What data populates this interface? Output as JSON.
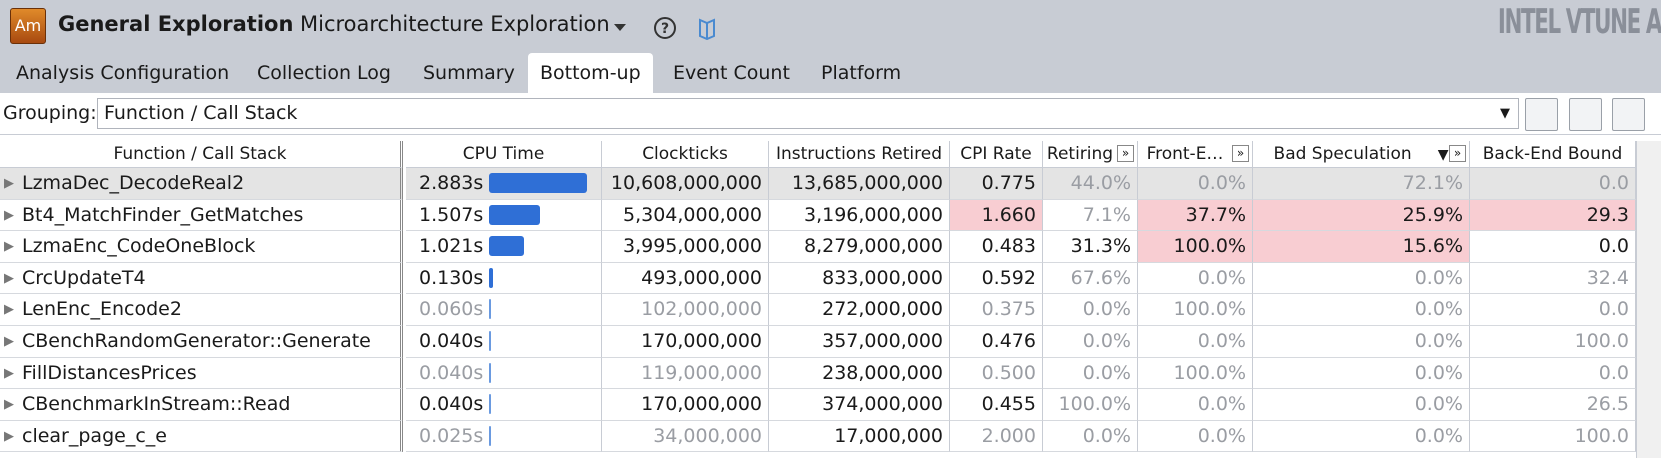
{
  "header": {
    "logo": "Am",
    "title": "General Exploration",
    "analysis": "Microarchitecture Exploration",
    "brand": "INTEL VTUNE A"
  },
  "tabs": {
    "items": [
      "Analysis Configuration",
      "Collection Log",
      "Summary",
      "Bottom-up",
      "Event Count",
      "Platform"
    ],
    "active": 3
  },
  "grouping": {
    "label": "Grouping:",
    "value": "Function / Call Stack"
  },
  "table": {
    "columns": [
      "Function / Call Stack",
      "CPU Time",
      "Clockticks",
      "Instructions Retired",
      "CPI Rate",
      "Retiring",
      "Front-E…",
      "Bad Speculation",
      "Back-End Bound"
    ],
    "sorted_column": 7,
    "expand_columns": [
      5,
      6,
      7
    ],
    "bar_column": 1,
    "selected_row": 0,
    "rows": [
      {
        "cells": [
          "LzmaDec_DecodeReal2",
          "2.883s",
          "10,608,000,000",
          "13,685,000,000",
          "0.775",
          "44.0%",
          "0.0%",
          "72.1%",
          "0.0"
        ],
        "muted": [
          5,
          6,
          7,
          8
        ],
        "highlight": []
      },
      {
        "cells": [
          "Bt4_MatchFinder_GetMatches",
          "1.507s",
          "5,304,000,000",
          "3,196,000,000",
          "1.660",
          "7.1%",
          "37.7%",
          "25.9%",
          "29.3"
        ],
        "muted": [
          5
        ],
        "highlight": [
          4,
          6,
          7,
          8
        ]
      },
      {
        "cells": [
          "LzmaEnc_CodeOneBlock",
          "1.021s",
          "3,995,000,000",
          "8,279,000,000",
          "0.483",
          "31.3%",
          "100.0%",
          "15.6%",
          "0.0"
        ],
        "muted": [],
        "highlight": [
          6,
          7
        ]
      },
      {
        "cells": [
          "CrcUpdateT4",
          "0.130s",
          "493,000,000",
          "833,000,000",
          "0.592",
          "67.6%",
          "0.0%",
          "0.0%",
          "32.4"
        ],
        "muted": [
          5,
          6,
          7,
          8
        ],
        "highlight": []
      },
      {
        "cells": [
          "LenEnc_Encode2",
          "0.060s",
          "102,000,000",
          "272,000,000",
          "0.375",
          "0.0%",
          "100.0%",
          "0.0%",
          "0.0"
        ],
        "muted": [
          1,
          2,
          4,
          5,
          6,
          7,
          8
        ],
        "highlight": []
      },
      {
        "cells": [
          "CBenchRandomGenerator::Generate",
          "0.040s",
          "170,000,000",
          "357,000,000",
          "0.476",
          "0.0%",
          "0.0%",
          "0.0%",
          "100.0"
        ],
        "muted": [
          5,
          6,
          7,
          8
        ],
        "highlight": []
      },
      {
        "cells": [
          "FillDistancesPrices",
          "0.040s",
          "119,000,000",
          "238,000,000",
          "0.500",
          "0.0%",
          "100.0%",
          "0.0%",
          "0.0"
        ],
        "muted": [
          1,
          2,
          4,
          5,
          6,
          7,
          8
        ],
        "highlight": []
      },
      {
        "cells": [
          "CBenchmarkInStream::Read",
          "0.040s",
          "170,000,000",
          "374,000,000",
          "0.455",
          "100.0%",
          "0.0%",
          "0.0%",
          "26.5"
        ],
        "muted": [
          5,
          6,
          7,
          8
        ],
        "highlight": []
      },
      {
        "cells": [
          "clear_page_c_e",
          "0.025s",
          "34,000,000",
          "17,000,000",
          "2.000",
          "0.0%",
          "0.0%",
          "0.0%",
          "100.0"
        ],
        "muted": [
          1,
          2,
          4,
          5,
          6,
          7,
          8
        ],
        "highlight": []
      }
    ]
  }
}
